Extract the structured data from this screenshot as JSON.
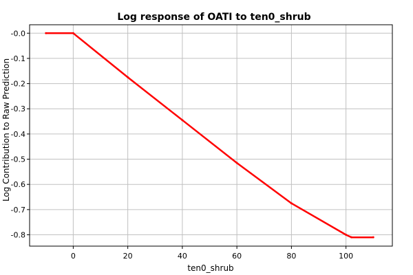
{
  "chart_data": {
    "type": "line",
    "title": "Log response of OATI to ten0_shrub",
    "xlabel": "ten0_shrub",
    "ylabel": "Log Contribution to Raw Prediction",
    "xlim": [
      -16,
      117
    ],
    "ylim": [
      -0.845,
      0.0335
    ],
    "x_ticks": [
      0,
      20,
      40,
      60,
      80,
      100
    ],
    "x_tick_labels": [
      "0",
      "20",
      "40",
      "60",
      "80",
      "100"
    ],
    "y_ticks": [
      0.0,
      -0.1,
      -0.2,
      -0.3,
      -0.4,
      -0.5,
      -0.6,
      -0.7,
      -0.8
    ],
    "y_tick_labels": [
      "-0.0",
      "-0.1",
      "-0.2",
      "-0.3",
      "-0.4",
      "-0.5",
      "-0.6",
      "-0.7",
      "-0.8"
    ],
    "grid": true,
    "series": [
      {
        "color": "#ff0000",
        "x": [
          -10,
          0,
          20,
          40,
          60,
          80,
          100,
          102,
          110
        ],
        "y": [
          0.0,
          0.0,
          -0.175,
          -0.345,
          -0.515,
          -0.675,
          -0.8,
          -0.81,
          -0.81
        ]
      }
    ]
  }
}
